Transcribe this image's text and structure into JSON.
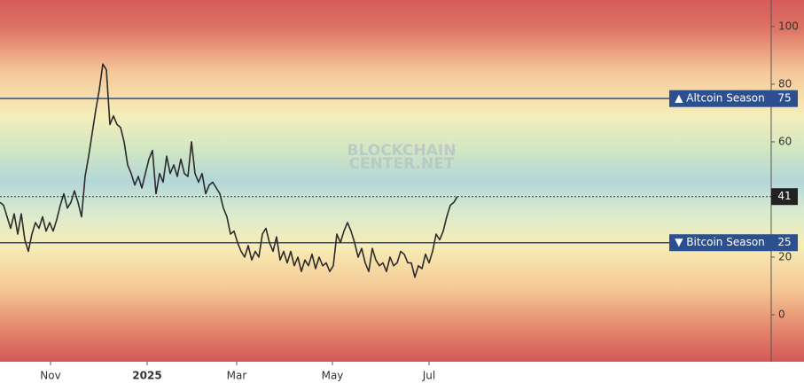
{
  "chart_data": {
    "type": "line",
    "watermark": [
      "BLOCKCHAIN",
      "CENTER.NET"
    ],
    "color": "#2b2b2b",
    "values": [
      39,
      38,
      34,
      30,
      35,
      28,
      35,
      26,
      22,
      28,
      32,
      30,
      34,
      29,
      32,
      29,
      33,
      38,
      42,
      37,
      39,
      43,
      39,
      34,
      48,
      55,
      63,
      71,
      78,
      87,
      85,
      66,
      69,
      66,
      65,
      60,
      52,
      49,
      45,
      48,
      44,
      49,
      54,
      57,
      42,
      49,
      46,
      55,
      49,
      52,
      48,
      54,
      49,
      48,
      60,
      49,
      46,
      49,
      42,
      45,
      46,
      44,
      42,
      37,
      34,
      28,
      29,
      25,
      22,
      20,
      24,
      19,
      22,
      20,
      28,
      30,
      25,
      22,
      27,
      19,
      22,
      18,
      22,
      17,
      20,
      15,
      19,
      17,
      21,
      16,
      20,
      17,
      18,
      15,
      17,
      28,
      25,
      29,
      32,
      29,
      25,
      20,
      23,
      18,
      15,
      23,
      19,
      17,
      18,
      15,
      20,
      17,
      18,
      22,
      21,
      18,
      18,
      13,
      17,
      16,
      21,
      18,
      22,
      28,
      26,
      29,
      34,
      38,
      39,
      41
    ],
    "xlim": [
      0,
      217.5
    ],
    "xticks": [
      {
        "value": 14.25,
        "label": "Nov"
      },
      {
        "value": 41.5,
        "label": "2025"
      },
      {
        "value": 66.75,
        "label": "Mar"
      },
      {
        "value": 93.75,
        "label": "May"
      },
      {
        "value": 121,
        "label": "Jul"
      }
    ],
    "ylim": [
      -16.3,
      109.2
    ],
    "yticks": [
      0,
      20,
      60,
      80,
      100
    ],
    "axis_side": "right",
    "reference_lines": [
      {
        "value": 75,
        "label": "▲ Altcoin Season",
        "color": "#2c4f8f"
      },
      {
        "value": 25,
        "label": "▼ Bitcoin Season",
        "color": "#2c4f8f"
      }
    ]
  }
}
